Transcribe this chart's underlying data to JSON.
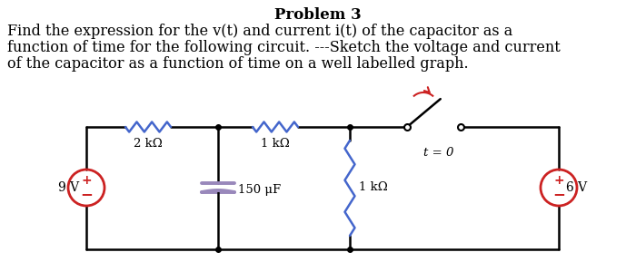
{
  "title": "Problem 3",
  "text_line1": "Find the expression for the v(t) and current i(t) of the capacitor as a",
  "text_line2": "function of time for the following circuit. ---Sketch the voltage and current",
  "text_line3": "of the capacitor as a function of time on a well labelled graph.",
  "bg_color": "#ffffff",
  "circuit_color": "#000000",
  "resistor_h_color": "#4466cc",
  "resistor_v_color": "#4466cc",
  "cap_plate_color": "#9988bb",
  "source_color": "#cc2222",
  "switch_arrow_color": "#cc2222",
  "label_2kohm": "2 kΩ",
  "label_1kohm_top": "1 kΩ",
  "label_150uF": "150 μF",
  "label_1kohm_right": "1 kΩ",
  "label_9V": "9 V",
  "label_6V": "6 V",
  "label_t0": "t = 0",
  "title_fontsize": 12,
  "text_fontsize": 11.5
}
